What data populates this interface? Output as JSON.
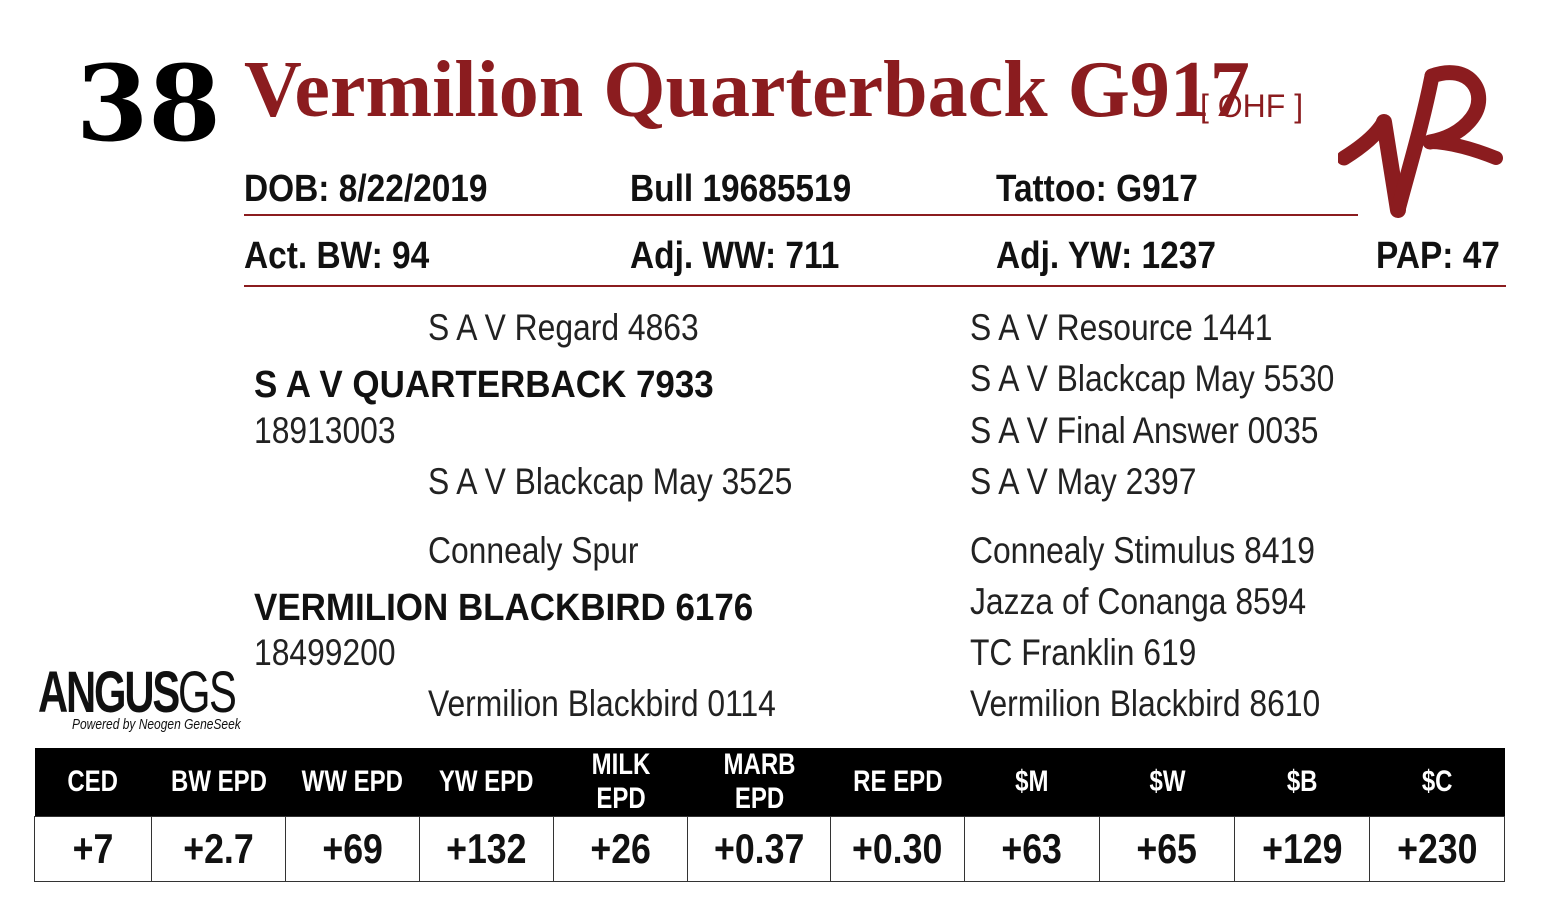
{
  "lot_number": "38",
  "animal": {
    "name": "Vermilion Quarterback G917",
    "tag": "[ OHF ]"
  },
  "details": {
    "dob": "DOB:  8/22/2019",
    "registration": "Bull   19685519",
    "tattoo": "Tattoo:  G917",
    "act_bw": "Act. BW: 94",
    "adj_ww": "Adj. WW: 711",
    "adj_yw": "Adj. YW: 1237",
    "pap": "PAP: 47"
  },
  "pedigree": {
    "sire": {
      "sire_of_sire": "S A V Regard 4863",
      "name": "S A V QUARTERBACK 7933",
      "reg": "18913003",
      "dam_of_sire": "S A V Blackcap May 3525",
      "great_grandparents": [
        "S A V Resource 1441",
        "S A V Blackcap May 5530",
        "S A V Final Answer 0035",
        "S A V May 2397"
      ]
    },
    "dam": {
      "sire_of_dam": "Connealy Spur",
      "name": "VERMILION BLACKBIRD 6176",
      "reg": "18499200",
      "dam_of_dam": "Vermilion Blackbird 0114",
      "great_grandparents": [
        "Connealy Stimulus 8419",
        "Jazza of Conanga 8594",
        "TC Franklin 619",
        "Vermilion Blackbird 8610"
      ]
    }
  },
  "logo": {
    "word": "ANGUS",
    "suffix": "GS",
    "sub": "Powered by Neogen GeneSeek"
  },
  "epd": {
    "headers": [
      "CED",
      "BW EPD",
      "WW EPD",
      "YW EPD",
      "MILK EPD",
      "MARB EPD",
      "RE EPD",
      "$M",
      "$W",
      "$B",
      "$C"
    ],
    "values": [
      "+7",
      "+2.7",
      "+69",
      "+132",
      "+26",
      "+0.37",
      "+0.30",
      "+63",
      "+65",
      "+129",
      "+230"
    ]
  },
  "colors": {
    "accent": "#8b1c1f",
    "text": "#111111",
    "header_bg": "#000000"
  },
  "icons": {
    "brand": "vr-brand-icon"
  }
}
